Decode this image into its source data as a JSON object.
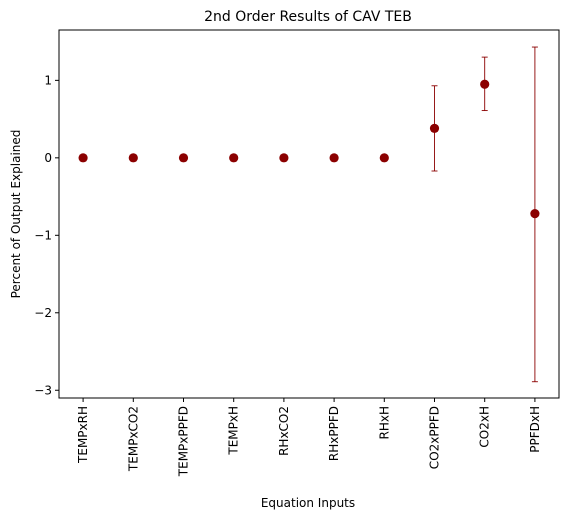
{
  "chart_data": {
    "type": "scatter",
    "title": "2nd Order Results of CAV TEB",
    "xlabel": "Equation Inputs",
    "ylabel": "Percent of Output Explained",
    "categories": [
      "TEMPxRH",
      "TEMPxCO2",
      "TEMPxPPFD",
      "TEMPxH",
      "RHxCO2",
      "RHxPPFD",
      "RHxH",
      "CO2xPPFD",
      "CO2xH",
      "PPFDxH"
    ],
    "values": [
      0.0,
      0.0,
      0.0,
      0.0,
      0.0,
      0.0,
      0.0,
      0.38,
      0.95,
      -0.72
    ],
    "error_low": [
      0.0,
      0.0,
      0.0,
      0.0,
      0.0,
      0.0,
      0.0,
      -0.17,
      0.61,
      -2.89
    ],
    "error_high": [
      0.0,
      0.0,
      0.0,
      0.0,
      0.0,
      0.0,
      0.0,
      0.93,
      1.3,
      1.43
    ],
    "ylim": [
      -3.1,
      1.65
    ],
    "yticks": [
      -3,
      -2,
      -1,
      0,
      1
    ],
    "ytick_labels": [
      "−3",
      "−2",
      "−1",
      "0",
      "1"
    ],
    "grid": false,
    "marker_color": "#8b0000",
    "errorbar_color": "#8b0000"
  }
}
